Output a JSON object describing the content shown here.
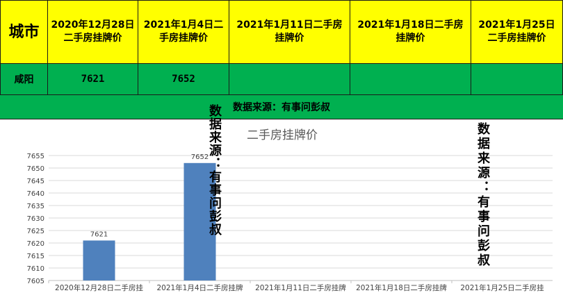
{
  "table": {
    "city_header": "城市",
    "date_headers": [
      "2020年12月28日二手房挂牌价",
      "2021年1月4日二手房挂牌价",
      "2021年1月11日二手房挂牌价",
      "2021年1月18日二手房挂牌价",
      "2021年1月25日二手房挂牌价"
    ],
    "city": "咸阳",
    "prices": [
      "7621",
      "7652",
      "",
      "",
      ""
    ]
  },
  "source_text": "数据来源：有事问彭叔",
  "watermark_text": "数据来源：有事问彭叔",
  "colors": {
    "header_bg": "#ffff00",
    "row_bg": "#00b050",
    "bar": "#4f81bd"
  },
  "chart_data": {
    "type": "bar",
    "title": "二手房挂牌价",
    "categories": [
      "2020年12月28日二手房挂",
      "2021年1月4日二手房挂牌",
      "2021年1月11日二手房挂牌",
      "2021年1月18日二手房挂牌",
      "2021年1月25日二手房挂"
    ],
    "values": [
      7621,
      7652,
      null,
      null,
      null
    ],
    "data_labels": [
      "7621",
      "7652",
      "",
      "",
      ""
    ],
    "ylim": [
      7605,
      7655
    ],
    "yticks": [
      7605,
      7610,
      7615,
      7620,
      7625,
      7630,
      7635,
      7640,
      7645,
      7650,
      7655
    ],
    "grid": true,
    "legend": "none"
  }
}
